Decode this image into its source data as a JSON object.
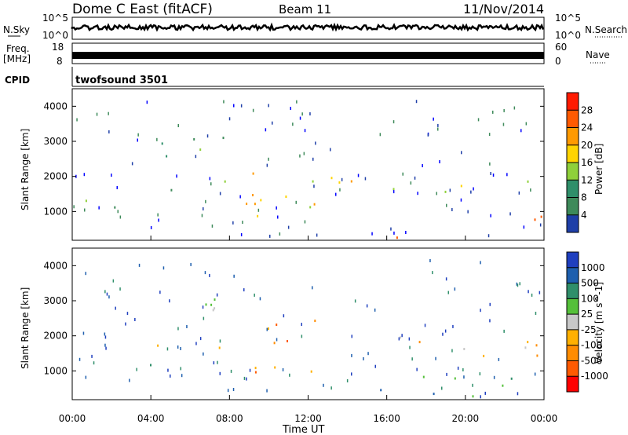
{
  "header": {
    "station": "Dome C East (fitACF)",
    "beam": "Beam 11",
    "date": "11/Nov/2014"
  },
  "noise_panel": {
    "left_label": "N.Sky",
    "right_label": "N.Search",
    "left_ticks": [
      "10^5",
      "10^0"
    ],
    "right_ticks": [
      "10^5",
      "10^0"
    ]
  },
  "freq_panel": {
    "label_line1": "Freq.",
    "label_line2": "[MHz]",
    "right_label": "Nave",
    "left_ticks": [
      "18",
      "8"
    ],
    "right_ticks": [
      "60",
      "0"
    ]
  },
  "cpid": {
    "label": "CPID",
    "text": "twofsound 3501"
  },
  "colors": {
    "power_scale": [
      "#0000ff",
      "#1f3fa8",
      "#3e8a5a",
      "#2f8f6a",
      "#8fd03a",
      "#ffd400",
      "#ff9a00",
      "#ff5a00",
      "#ff1a00"
    ],
    "velocity_scale": [
      "#1f3fbf",
      "#1e5fae",
      "#2f8f6a",
      "#55c03a",
      "#c8c8c8",
      "#ffb000",
      "#ff8c00",
      "#ff5a00",
      "#ff0000"
    ]
  },
  "chart_data": [
    {
      "type": "heatmap",
      "title": "",
      "xlabel": "",
      "ylabel": "Slant Range [km]",
      "x_ticks": [
        "00:00",
        "04:00",
        "08:00",
        "12:00",
        "16:00",
        "20:00",
        "00:00"
      ],
      "y_ticks": [
        1000,
        2000,
        3000,
        4000
      ],
      "xlim": [
        0,
        24
      ],
      "ylim": [
        180,
        4500
      ],
      "colorbar": {
        "label": "Power [dB]",
        "ticks": [
          4,
          8,
          12,
          16,
          20,
          24,
          28
        ],
        "range": [
          0,
          32
        ]
      },
      "features": [
        {
          "desc": "band near 1100 km",
          "t": [
            0,
            8
          ],
          "r": [
            1050,
            1200
          ],
          "level": 8
        },
        {
          "desc": "range 1100-1500 early",
          "t": [
            0,
            1
          ],
          "r": [
            1000,
            1600
          ],
          "level": 20
        },
        {
          "desc": "echo 2000-3200 km",
          "t": [
            4,
            8
          ],
          "r": [
            1600,
            3200
          ],
          "level": 12
        },
        {
          "desc": "echo 8-12 UT",
          "t": [
            8,
            12.5
          ],
          "r": [
            800,
            2600
          ],
          "level": 18
        },
        {
          "desc": "band ~1800 km",
          "t": [
            12,
            24
          ],
          "r": [
            1400,
            2000
          ],
          "level": 20
        },
        {
          "desc": "near range 16 UT",
          "t": [
            15,
            17
          ],
          "r": [
            180,
            500
          ],
          "level": 28
        },
        {
          "desc": "near range 22-24 UT",
          "t": [
            22,
            24
          ],
          "r": [
            180,
            900
          ],
          "level": 28
        }
      ]
    },
    {
      "type": "heatmap",
      "title": "",
      "xlabel": "Time UT",
      "ylabel": "Slant Range [km]",
      "x_ticks": [
        "00:00",
        "04:00",
        "08:00",
        "12:00",
        "16:00",
        "20:00",
        "00:00"
      ],
      "y_ticks": [
        1000,
        2000,
        3000,
        4000
      ],
      "xlim": [
        0,
        24
      ],
      "ylim": [
        180,
        4500
      ],
      "colorbar": {
        "label": "Velocity [m s^-1]",
        "ticks": [
          "1000",
          "500",
          "100",
          "25",
          "-25",
          "-100",
          "-500",
          "-1000"
        ]
      },
      "features": [
        {
          "desc": "band near 1100 km",
          "t": [
            0,
            8
          ],
          "r": [
            1050,
            1200
          ],
          "level": "25"
        },
        {
          "desc": "echo 2000-3200 km",
          "t": [
            4,
            8
          ],
          "r": [
            1600,
            3200
          ],
          "level": "-25"
        },
        {
          "desc": "echo 8-12 UT",
          "t": [
            8,
            12.5
          ],
          "r": [
            800,
            2600
          ],
          "level": "-500"
        },
        {
          "desc": "band ~1800 km",
          "t": [
            12,
            24
          ],
          "r": [
            1400,
            2000
          ],
          "level": "-100"
        },
        {
          "desc": "near range",
          "t": [
            15,
            24
          ],
          "r": [
            180,
            900
          ],
          "level": "100"
        }
      ]
    }
  ]
}
